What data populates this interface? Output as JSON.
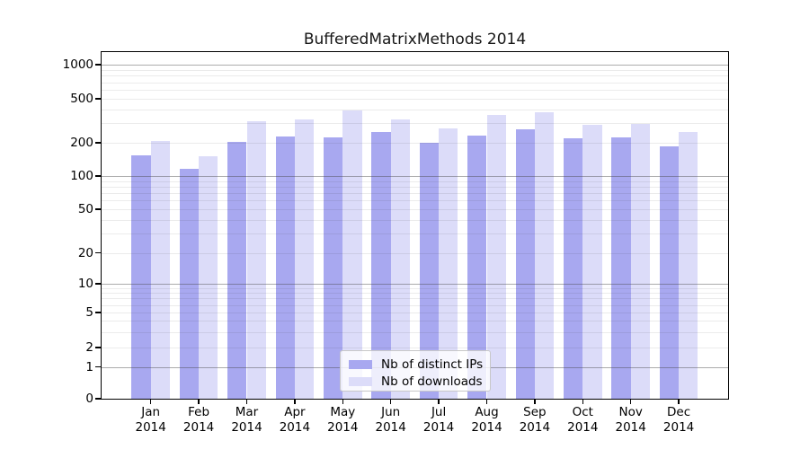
{
  "chart_data": {
    "type": "bar",
    "title": "BufferedMatrixMethods 2014",
    "categories": [
      "Jan 2014",
      "Feb 2014",
      "Mar 2014",
      "Apr 2014",
      "May 2014",
      "Jun 2014",
      "Jul 2014",
      "Aug 2014",
      "Sep 2014",
      "Oct 2014",
      "Nov 2014",
      "Dec 2014"
    ],
    "series": [
      {
        "name": "Nb of distinct IPs",
        "color": "#a8a8f0",
        "values": [
          153,
          117,
          205,
          227,
          222,
          249,
          199,
          233,
          266,
          218,
          224,
          184
        ]
      },
      {
        "name": "Nb of downloads",
        "color": "#dcdcf9",
        "values": [
          207,
          151,
          313,
          328,
          391,
          327,
          270,
          358,
          380,
          292,
          298,
          249
        ]
      }
    ],
    "xlabel": "",
    "ylabel": "",
    "y_ticks": [
      0,
      1,
      2,
      5,
      10,
      20,
      50,
      100,
      200,
      500,
      1000
    ],
    "y_scale": "log",
    "ylim": [
      0,
      1300
    ],
    "grid": true,
    "legend_position": "lower center"
  },
  "colors": {
    "background": "#ffffff",
    "axis": "#000000",
    "major_grid": "#b0b0b0",
    "minor_grid": "#e8e8e8"
  }
}
